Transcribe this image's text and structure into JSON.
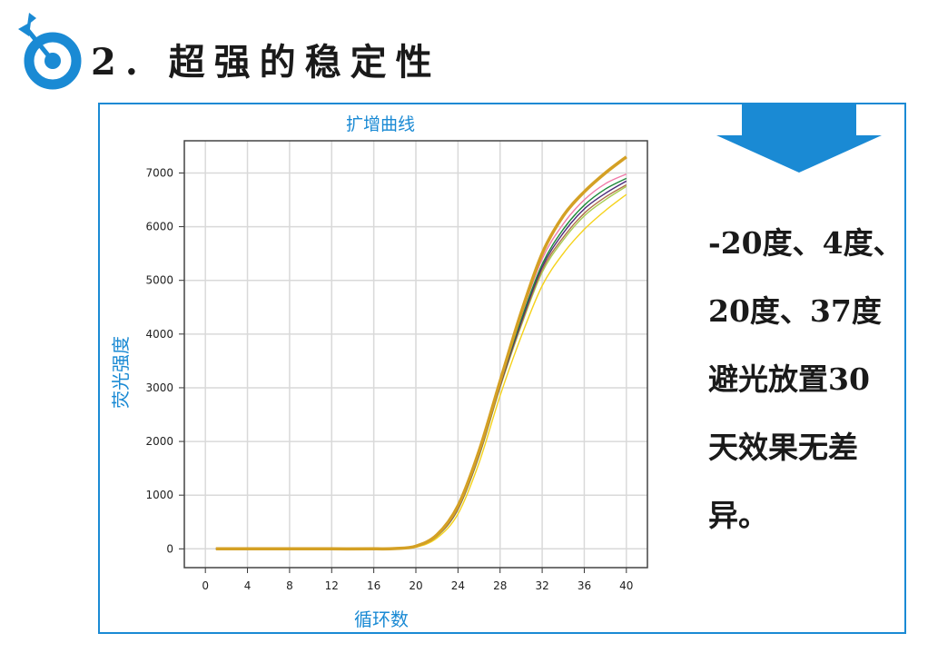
{
  "header": {
    "title": "2. 超强的稳定性",
    "icon": "target-arrow-icon",
    "accent": "#1a8ad4"
  },
  "description": {
    "lines": [
      "-20度、4度、",
      "20度、37度",
      "避光放置30",
      "天效果无差",
      "异。"
    ]
  },
  "chart_data": {
    "type": "line",
    "title": "扩增曲线",
    "xlabel": "循环数",
    "ylabel": "荧光强度",
    "xlim": [
      -2,
      42
    ],
    "ylim": [
      -350,
      7600
    ],
    "xticks": [
      0,
      4,
      8,
      12,
      16,
      20,
      24,
      28,
      32,
      36,
      40
    ],
    "yticks": [
      0,
      1000,
      2000,
      3000,
      4000,
      5000,
      6000,
      7000
    ],
    "grid": true,
    "x": [
      1,
      4,
      8,
      12,
      16,
      18,
      20,
      22,
      24,
      26,
      28,
      30,
      32,
      34,
      36,
      38,
      40
    ],
    "series": [
      {
        "color": "#f5d21a",
        "values": [
          0,
          0,
          0,
          0,
          0,
          5,
          30,
          200,
          650,
          1600,
          2850,
          3950,
          4900,
          5500,
          5950,
          6300,
          6600
        ]
      },
      {
        "color": "#a8cc50",
        "values": [
          0,
          0,
          0,
          0,
          0,
          5,
          40,
          230,
          730,
          1720,
          3000,
          4150,
          5150,
          5750,
          6200,
          6500,
          6750
        ]
      },
      {
        "color": "#b0704a",
        "values": [
          0,
          0,
          0,
          0,
          0,
          5,
          40,
          235,
          740,
          1740,
          3020,
          4180,
          5200,
          5800,
          6250,
          6550,
          6780
        ]
      },
      {
        "color": "#4b2a7a",
        "values": [
          0,
          0,
          0,
          0,
          0,
          5,
          42,
          240,
          750,
          1750,
          3040,
          4220,
          5250,
          5880,
          6330,
          6620,
          6850
        ]
      },
      {
        "color": "#1e8a3a",
        "values": [
          0,
          0,
          0,
          0,
          0,
          5,
          45,
          250,
          770,
          1780,
          3070,
          4270,
          5300,
          5950,
          6400,
          6700,
          6900
        ]
      },
      {
        "color": "#f07aa8",
        "values": [
          0,
          0,
          0,
          0,
          0,
          5,
          45,
          250,
          780,
          1790,
          3090,
          4330,
          5400,
          6050,
          6500,
          6800,
          6980
        ]
      },
      {
        "color": "#d4a024",
        "thick": true,
        "values": [
          0,
          0,
          0,
          0,
          0,
          5,
          50,
          260,
          800,
          1820,
          3120,
          4400,
          5500,
          6200,
          6650,
          7000,
          7300
        ]
      }
    ]
  }
}
